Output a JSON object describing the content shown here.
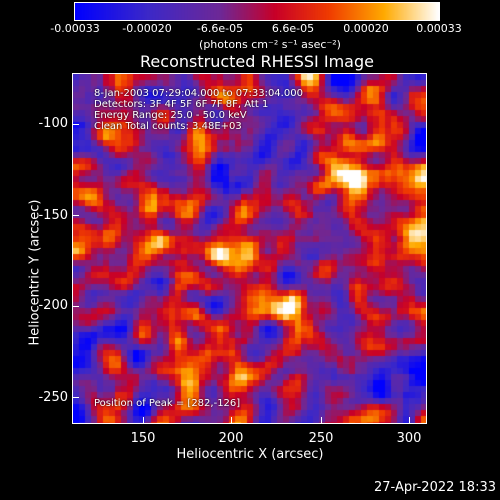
{
  "colorbar": {
    "ticks": [
      "-0.00033",
      "-0.00020",
      "-6.6e-05",
      "6.6e-05",
      "0.00020",
      "0.00033"
    ],
    "units": "(photons cm⁻² s⁻¹ asec⁻²)"
  },
  "title": "Reconstructed RHESSI Image",
  "info": {
    "line1": "8-Jan-2003 07:29:04.000 to 07:33:04.000",
    "line2": "Detectors: 3F 4F 5F 6F 7F 8F, Att 1",
    "line3": "Energy Range: 25.0 - 50.0 keV",
    "line4": "Clean     Total counts: 3.48E+03",
    "peak": "Position of Peak = [282,-126]"
  },
  "axes": {
    "xlabel": "Heliocentric X (arcsec)",
    "ylabel": "Heliocentric Y (arcsec)",
    "xticks": [
      "150",
      "200",
      "250",
      "300"
    ],
    "yticks": [
      "-100",
      "-150",
      "-200",
      "-250"
    ]
  },
  "timestamp": "27-Apr-2022 18:33"
}
